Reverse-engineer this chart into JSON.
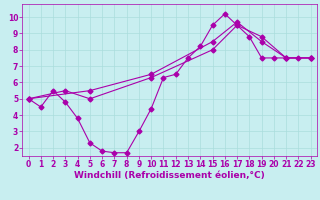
{
  "title": "",
  "xlabel": "Windchill (Refroidissement éolien,°C)",
  "ylabel": "",
  "background_color": "#c8eef0",
  "grid_color": "#aadddd",
  "line_color": "#aa00aa",
  "xlim": [
    -0.5,
    23.5
  ],
  "ylim": [
    1.5,
    10.8
  ],
  "xticks": [
    0,
    1,
    2,
    3,
    4,
    5,
    6,
    7,
    8,
    9,
    10,
    11,
    12,
    13,
    14,
    15,
    16,
    17,
    18,
    19,
    20,
    21,
    22,
    23
  ],
  "yticks": [
    2,
    3,
    4,
    5,
    6,
    7,
    8,
    9,
    10
  ],
  "line1_x": [
    0,
    1,
    2,
    3,
    4,
    5,
    6,
    7,
    8,
    9,
    10,
    11,
    12,
    13,
    14,
    15,
    16,
    17,
    18,
    19,
    20,
    21,
    22,
    23
  ],
  "line1_y": [
    5.0,
    4.5,
    5.5,
    4.8,
    3.8,
    2.3,
    1.8,
    1.7,
    1.7,
    3.0,
    4.4,
    6.3,
    6.5,
    7.5,
    8.2,
    9.5,
    10.2,
    9.5,
    8.8,
    7.5,
    7.5,
    7.5,
    7.5,
    7.5
  ],
  "line2_x": [
    0,
    3,
    5,
    10,
    15,
    17,
    19,
    21,
    23
  ],
  "line2_y": [
    5.0,
    5.5,
    5.0,
    6.3,
    8.0,
    9.5,
    8.8,
    7.5,
    7.5
  ],
  "line3_x": [
    0,
    5,
    10,
    15,
    17,
    19,
    21,
    23
  ],
  "line3_y": [
    5.0,
    5.5,
    6.5,
    8.5,
    9.7,
    8.5,
    7.5,
    7.5
  ],
  "tick_label_fontsize": 5.5,
  "xlabel_fontsize": 6.5,
  "marker_size": 2.5,
  "line_width": 0.8
}
